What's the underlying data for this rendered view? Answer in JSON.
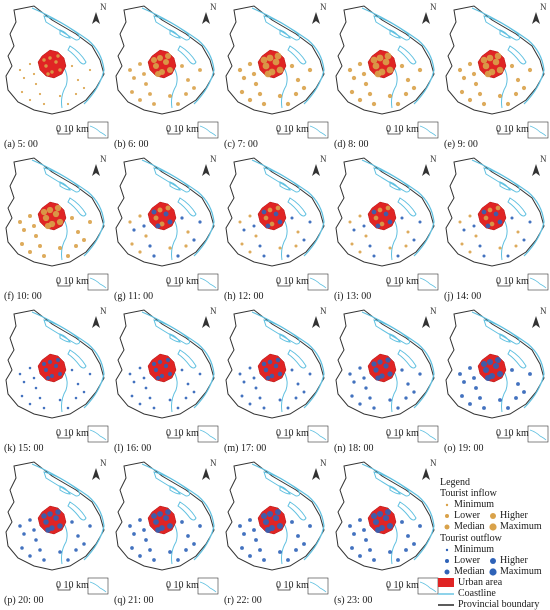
{
  "figure": {
    "panels": [
      {
        "label": "(a) 5: 00",
        "flow": "inflow",
        "level": 0.2
      },
      {
        "label": "(b) 6: 00",
        "flow": "inflow",
        "level": 0.7
      },
      {
        "label": "(c) 7: 00",
        "flow": "inflow",
        "level": 0.85
      },
      {
        "label": "(d) 8: 00",
        "flow": "inflow",
        "level": 0.85
      },
      {
        "label": "(e) 9: 00",
        "flow": "inflow",
        "level": 0.8
      },
      {
        "label": "(f) 10: 00",
        "flow": "inflow",
        "level": 0.75
      },
      {
        "label": "(g) 11: 00",
        "flow": "mixed",
        "level": 0.5
      },
      {
        "label": "(h) 12: 00",
        "flow": "mixed",
        "level": 0.45
      },
      {
        "label": "(i) 13: 00",
        "flow": "mixed",
        "level": 0.45
      },
      {
        "label": "(j) 14: 00",
        "flow": "mixed",
        "level": 0.45
      },
      {
        "label": "(k) 15: 00",
        "flow": "outflow",
        "level": 0.3
      },
      {
        "label": "(l) 16: 00",
        "flow": "outflow",
        "level": 0.35
      },
      {
        "label": "(m) 17: 00",
        "flow": "outflow",
        "level": 0.4
      },
      {
        "label": "(n) 18: 00",
        "flow": "outflow",
        "level": 0.55
      },
      {
        "label": "(o) 19: 00",
        "flow": "outflow",
        "level": 0.7
      },
      {
        "label": "(p) 20: 00",
        "flow": "outflow",
        "level": 0.6
      },
      {
        "label": "(q) 21: 00",
        "flow": "outflow",
        "level": 0.65
      },
      {
        "label": "(r) 22: 00",
        "flow": "outflow",
        "level": 0.7
      },
      {
        "label": "(s) 23: 00",
        "flow": "outflow",
        "level": 0.7
      }
    ],
    "north_label": "N",
    "scale_label": "0 10 km"
  },
  "legend": {
    "title": "Legend",
    "inflow_title": "Tourist inflow",
    "inflow_items": {
      "minimum": "Minimum",
      "lower": "Lower",
      "median": "Median",
      "higher": "Higher",
      "maximum": "Maximum"
    },
    "outflow_title": "Tourist outflow",
    "outflow_items": {
      "minimum": "Minimum",
      "lower": "Lower",
      "median": "Median",
      "higher": "Higher",
      "maximum": "Maximum"
    },
    "urban_area": "Urban area",
    "coastline": "Coastline",
    "provincial_boundary": "Provincial boundary"
  },
  "colors": {
    "inflow": "#d9a24a",
    "outflow": "#2f63b8",
    "urban": "#e02424",
    "coastline": "#5fc0e0",
    "boundary": "#333333"
  }
}
